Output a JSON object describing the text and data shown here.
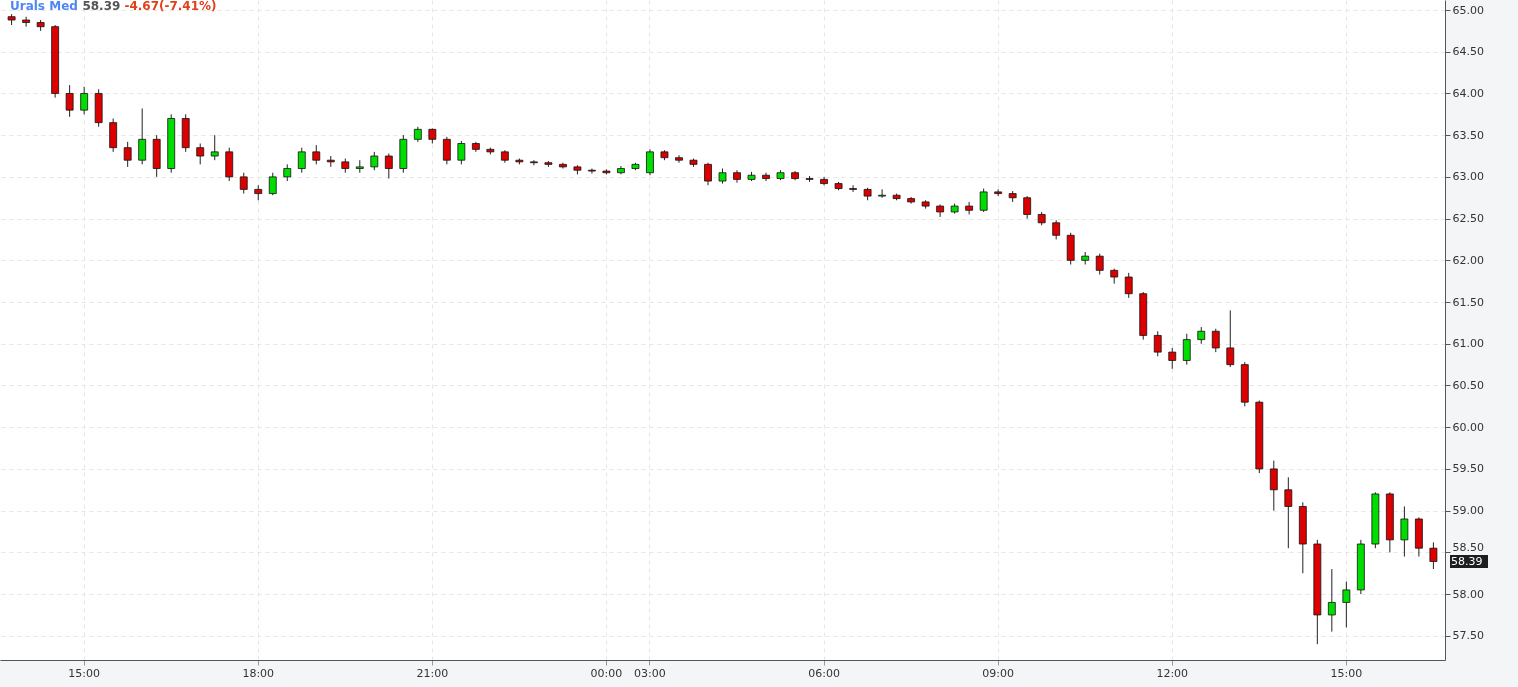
{
  "chart_data": {
    "type": "candlestick",
    "title": "Urals Med",
    "annotations": [
      "58.39",
      "-4.67(-7.41%)",
      "58.39"
    ],
    "categories": [
      null,
      null,
      null,
      null,
      null,
      "15:00",
      null,
      null,
      null,
      null,
      null,
      null,
      null,
      null,
      null,
      null,
      null,
      "18:00",
      null,
      null,
      null,
      null,
      null,
      null,
      null,
      null,
      null,
      null,
      null,
      "21:00",
      null,
      null,
      null,
      null,
      null,
      null,
      null,
      null,
      null,
      null,
      null,
      "00:00",
      null,
      null,
      "03:00",
      null,
      null,
      null,
      null,
      null,
      null,
      null,
      null,
      null,
      null,
      null,
      "06:00",
      null,
      null,
      null,
      null,
      null,
      null,
      null,
      null,
      null,
      null,
      null,
      "09:00",
      null,
      null,
      null,
      null,
      null,
      null,
      null,
      null,
      null,
      null,
      null,
      "12:00",
      null,
      null,
      null,
      null,
      null,
      null,
      null,
      null,
      null,
      null,
      null,
      "15:00",
      null,
      null,
      null,
      null,
      null,
      null
    ],
    "ohlc": [
      [
        64.92,
        64.95,
        64.82,
        64.88
      ],
      [
        64.88,
        64.92,
        64.8,
        64.85
      ],
      [
        64.85,
        64.88,
        64.75,
        64.8
      ],
      [
        64.8,
        64.82,
        63.95,
        64.0
      ],
      [
        64.0,
        64.1,
        63.72,
        63.8
      ],
      [
        63.8,
        64.08,
        63.75,
        64.0
      ],
      [
        64.0,
        64.05,
        63.6,
        63.65
      ],
      [
        63.65,
        63.7,
        63.3,
        63.35
      ],
      [
        63.35,
        63.42,
        63.12,
        63.2
      ],
      [
        63.2,
        63.82,
        63.15,
        63.45
      ],
      [
        63.45,
        63.5,
        63.0,
        63.1
      ],
      [
        63.1,
        63.75,
        63.05,
        63.7
      ],
      [
        63.7,
        63.75,
        63.3,
        63.35
      ],
      [
        63.35,
        63.4,
        63.15,
        63.25
      ],
      [
        63.25,
        63.5,
        63.2,
        63.3
      ],
      [
        63.3,
        63.35,
        62.95,
        63.0
      ],
      [
        63.0,
        63.05,
        62.8,
        62.85
      ],
      [
        62.85,
        62.9,
        62.72,
        62.8
      ],
      [
        62.8,
        63.05,
        62.78,
        63.0
      ],
      [
        63.0,
        63.15,
        62.95,
        63.1
      ],
      [
        63.1,
        63.35,
        63.05,
        63.3
      ],
      [
        63.3,
        63.38,
        63.15,
        63.2
      ],
      [
        63.2,
        63.25,
        63.12,
        63.18
      ],
      [
        63.18,
        63.22,
        63.05,
        63.1
      ],
      [
        63.1,
        63.2,
        63.05,
        63.12
      ],
      [
        63.12,
        63.3,
        63.08,
        63.25
      ],
      [
        63.25,
        63.28,
        62.98,
        63.1
      ],
      [
        63.1,
        63.5,
        63.05,
        63.45
      ],
      [
        63.45,
        63.6,
        63.42,
        63.57
      ],
      [
        63.57,
        63.58,
        63.4,
        63.45
      ],
      [
        63.45,
        63.48,
        63.15,
        63.2
      ],
      [
        63.2,
        63.43,
        63.15,
        63.4
      ],
      [
        63.4,
        63.42,
        63.3,
        63.33
      ],
      [
        63.33,
        63.35,
        63.27,
        63.3
      ],
      [
        63.3,
        63.32,
        63.17,
        63.2
      ],
      [
        63.2,
        63.22,
        63.15,
        63.18
      ],
      [
        63.18,
        63.2,
        63.14,
        63.17
      ],
      [
        63.17,
        63.19,
        63.12,
        63.15
      ],
      [
        63.15,
        63.17,
        63.1,
        63.12
      ],
      [
        63.12,
        63.14,
        63.03,
        63.08
      ],
      [
        63.08,
        63.1,
        63.04,
        63.07
      ],
      [
        63.07,
        63.09,
        63.03,
        63.05
      ],
      [
        63.05,
        63.13,
        63.03,
        63.1
      ],
      [
        63.1,
        63.17,
        63.08,
        63.15
      ],
      [
        63.05,
        63.33,
        63.02,
        63.3
      ],
      [
        63.3,
        63.32,
        63.2,
        63.23
      ],
      [
        63.23,
        63.26,
        63.17,
        63.2
      ],
      [
        63.2,
        63.22,
        63.12,
        63.15
      ],
      [
        63.15,
        63.17,
        62.9,
        62.95
      ],
      [
        62.95,
        63.1,
        62.92,
        63.05
      ],
      [
        63.05,
        63.08,
        62.93,
        62.97
      ],
      [
        62.97,
        63.06,
        62.95,
        63.02
      ],
      [
        63.02,
        63.05,
        62.95,
        62.98
      ],
      [
        62.98,
        63.08,
        62.96,
        63.05
      ],
      [
        63.05,
        63.07,
        62.96,
        62.98
      ],
      [
        62.98,
        63.01,
        62.94,
        62.97
      ],
      [
        62.97,
        63.0,
        62.9,
        62.92
      ],
      [
        62.92,
        62.94,
        62.84,
        62.86
      ],
      [
        62.86,
        62.9,
        62.82,
        62.85
      ],
      [
        62.85,
        62.87,
        62.72,
        62.77
      ],
      [
        62.77,
        62.85,
        62.75,
        62.78
      ],
      [
        62.78,
        62.8,
        62.72,
        62.74
      ],
      [
        62.74,
        62.76,
        62.68,
        62.7
      ],
      [
        62.7,
        62.72,
        62.62,
        62.65
      ],
      [
        62.65,
        62.67,
        62.52,
        62.58
      ],
      [
        62.58,
        62.68,
        62.56,
        62.65
      ],
      [
        62.65,
        62.7,
        62.55,
        62.6
      ],
      [
        62.6,
        62.86,
        62.58,
        62.82
      ],
      [
        62.82,
        62.85,
        62.77,
        62.8
      ],
      [
        62.8,
        62.83,
        62.7,
        62.75
      ],
      [
        62.75,
        62.77,
        62.5,
        62.55
      ],
      [
        62.55,
        62.58,
        62.42,
        62.45
      ],
      [
        62.45,
        62.48,
        62.25,
        62.3
      ],
      [
        62.3,
        62.33,
        61.95,
        62.0
      ],
      [
        62.0,
        62.1,
        61.95,
        62.05
      ],
      [
        62.05,
        62.08,
        61.83,
        61.88
      ],
      [
        61.88,
        61.9,
        61.72,
        61.8
      ],
      [
        61.8,
        61.85,
        61.55,
        61.6
      ],
      [
        61.6,
        61.62,
        61.05,
        61.1
      ],
      [
        61.1,
        61.15,
        60.85,
        60.9
      ],
      [
        60.9,
        60.95,
        60.7,
        60.8
      ],
      [
        60.8,
        61.12,
        60.75,
        61.05
      ],
      [
        61.05,
        61.2,
        61.0,
        61.15
      ],
      [
        61.15,
        61.18,
        60.9,
        60.95
      ],
      [
        60.95,
        61.4,
        60.72,
        60.75
      ],
      [
        60.75,
        60.78,
        60.25,
        60.3
      ],
      [
        60.3,
        60.32,
        59.45,
        59.5
      ],
      [
        59.5,
        59.6,
        59.0,
        59.25
      ],
      [
        59.25,
        59.4,
        58.55,
        59.05
      ],
      [
        59.05,
        59.1,
        58.25,
        58.6
      ],
      [
        58.6,
        58.65,
        57.4,
        57.75
      ],
      [
        57.75,
        58.3,
        57.55,
        57.9
      ],
      [
        57.9,
        58.15,
        57.6,
        58.05
      ],
      [
        58.05,
        58.65,
        58.0,
        58.6
      ],
      [
        58.6,
        59.22,
        58.55,
        59.2
      ],
      [
        59.2,
        59.22,
        58.5,
        58.65
      ],
      [
        58.65,
        59.05,
        58.45,
        58.9
      ],
      [
        58.9,
        58.92,
        58.45,
        58.55
      ],
      [
        58.55,
        58.62,
        58.3,
        58.39
      ]
    ],
    "colors": [
      "#dd0000",
      "#dd0000",
      "#dd0000",
      "#dd0000",
      "#dd0000",
      "#00dd00",
      "#dd0000",
      "#dd0000",
      "#dd0000",
      "#00dd00",
      "#dd0000",
      "#00dd00",
      "#dd0000",
      "#dd0000",
      "#00dd00",
      "#dd0000",
      "#dd0000",
      "#dd0000",
      "#00dd00",
      "#00dd00",
      "#00dd00",
      "#dd0000",
      "#dd0000",
      "#dd0000",
      "#00dd00",
      "#00dd00",
      "#dd0000",
      "#00dd00",
      "#00dd00",
      "#dd0000",
      "#dd0000",
      "#00dd00",
      "#dd0000",
      "#dd0000",
      "#dd0000",
      "#dd0000",
      "#dd0000",
      "#dd0000",
      "#dd0000",
      "#dd0000",
      "#dd0000",
      "#dd0000",
      "#00dd00",
      "#00dd00",
      "#00dd00",
      "#dd0000",
      "#dd0000",
      "#dd0000",
      "#dd0000",
      "#00dd00",
      "#dd0000",
      "#00dd00",
      "#dd0000",
      "#00dd00",
      "#dd0000",
      "#dd0000",
      "#dd0000",
      "#dd0000",
      "#dd0000",
      "#dd0000",
      "#00dd00",
      "#dd0000",
      "#dd0000",
      "#dd0000",
      "#dd0000",
      "#00dd00",
      "#dd0000",
      "#00dd00",
      "#dd0000",
      "#dd0000",
      "#dd0000",
      "#dd0000",
      "#dd0000",
      "#dd0000",
      "#00dd00",
      "#dd0000",
      "#dd0000",
      "#dd0000",
      "#dd0000",
      "#dd0000",
      "#dd0000",
      "#00dd00",
      "#00dd00",
      "#dd0000",
      "#dd0000",
      "#dd0000",
      "#dd0000",
      "#dd0000",
      "#dd0000",
      "#dd0000",
      "#dd0000",
      "#00dd00",
      "#00dd00",
      "#00dd00",
      "#00dd00",
      "#dd0000",
      "#00dd00",
      "#dd0000",
      "#dd0000"
    ],
    "ylim": [
      57.21,
      65.12
    ],
    "yticks": [
      {
        "value": 57.5,
        "label": "57.50"
      },
      {
        "value": 58,
        "label": "58.00"
      },
      {
        "value": 58.5,
        "label": "58.50"
      },
      {
        "value": 59,
        "label": "59.00"
      },
      {
        "value": 59.5,
        "label": "59.50"
      },
      {
        "value": 60,
        "label": "60.00"
      },
      {
        "value": 60.5,
        "label": "60.50"
      },
      {
        "value": 61,
        "label": "61.00"
      },
      {
        "value": 61.5,
        "label": "61.50"
      },
      {
        "value": 62,
        "label": "62.00"
      },
      {
        "value": 62.5,
        "label": "62.50"
      },
      {
        "value": 63,
        "label": "63.00"
      },
      {
        "value": 63.5,
        "label": "63.50"
      },
      {
        "value": 64,
        "label": "64.00"
      },
      {
        "value": 64.5,
        "label": "64.50"
      },
      {
        "value": 65,
        "label": "65.00"
      }
    ],
    "grid": true
  }
}
